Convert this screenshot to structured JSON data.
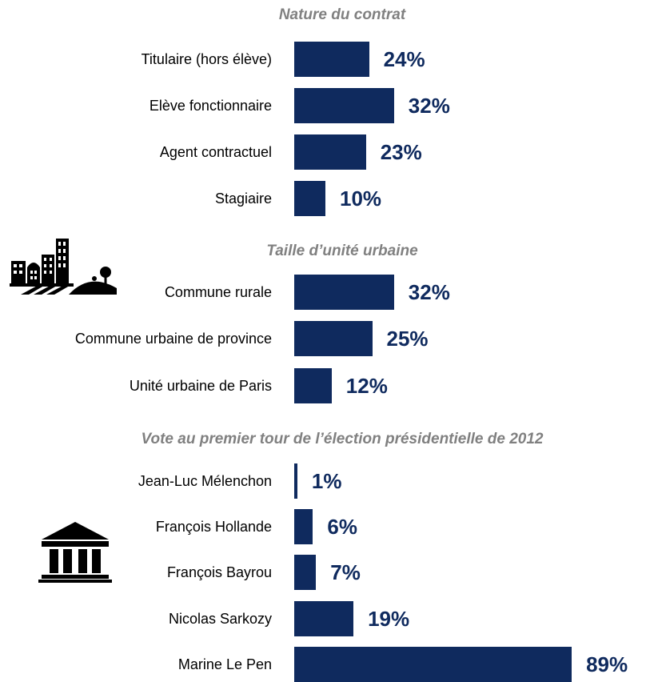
{
  "chart_data": [
    {
      "type": "bar",
      "orientation": "horizontal",
      "title": "Nature du contrat",
      "categories": [
        "Titulaire (hors élève)",
        "Elève fonctionnaire",
        "Agent contractuel",
        "Stagiaire"
      ],
      "values": [
        24,
        32,
        23,
        10
      ],
      "value_labels": [
        "24%",
        "32%",
        "23%",
        "10%"
      ],
      "xlim": [
        0,
        100
      ],
      "grid": false,
      "legend": "none",
      "bar_color": "#0f2a5e"
    },
    {
      "type": "bar",
      "orientation": "horizontal",
      "title": "Taille d’unité urbaine",
      "categories": [
        "Commune rurale",
        "Commune urbaine de province",
        "Unité urbaine de Paris"
      ],
      "values": [
        32,
        25,
        12
      ],
      "value_labels": [
        "32%",
        "25%",
        "12%"
      ],
      "xlim": [
        0,
        100
      ],
      "grid": false,
      "legend": "none",
      "bar_color": "#0f2a5e"
    },
    {
      "type": "bar",
      "orientation": "horizontal",
      "title": "Vote au premier tour de l’élection présidentielle de 2012",
      "categories": [
        "Jean-Luc Mélenchon",
        "François Hollande",
        "François Bayrou",
        "Nicolas Sarkozy",
        "Marine Le Pen"
      ],
      "values": [
        1,
        6,
        7,
        19,
        89
      ],
      "value_labels": [
        "1%",
        "6%",
        "7%",
        "19%",
        "89%"
      ],
      "xlim": [
        0,
        100
      ],
      "grid": false,
      "legend": "none",
      "bar_color": "#0f2a5e"
    }
  ],
  "icons": {
    "city": "city-skyline-icon",
    "institution": "government-building-icon"
  },
  "colors": {
    "bar": "#0f2a5e",
    "value_text": "#0f2a5e",
    "section_title": "#808080",
    "label_text": "#000000"
  }
}
